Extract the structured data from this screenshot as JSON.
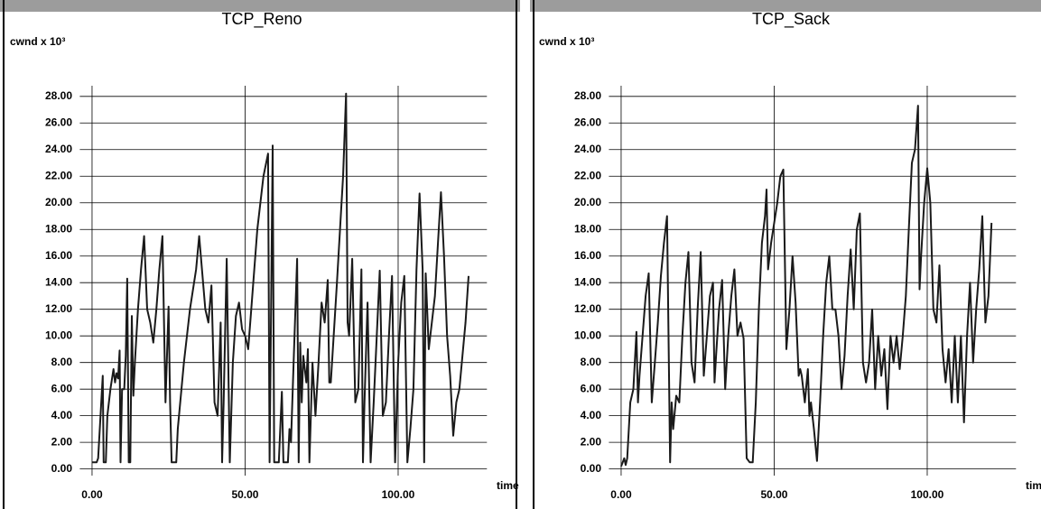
{
  "chart_data": [
    {
      "type": "line",
      "title": "TCP_Reno",
      "ylabel": "cwnd x 10³",
      "xlabel": "time",
      "grid": true,
      "xlim": [
        -4,
        129
      ],
      "ylim": [
        -0.5,
        28.8
      ],
      "xticks": [
        {
          "value": 0,
          "label": "0.00"
        },
        {
          "value": 50,
          "label": "50.00"
        },
        {
          "value": 100,
          "label": "100.00"
        }
      ],
      "yticks": [
        {
          "value": 0,
          "label": "0.00"
        },
        {
          "value": 2,
          "label": "2.00"
        },
        {
          "value": 4,
          "label": "4.00"
        },
        {
          "value": 6,
          "label": "6.00"
        },
        {
          "value": 8,
          "label": "8.00"
        },
        {
          "value": 10,
          "label": "10.00"
        },
        {
          "value": 12,
          "label": "12.00"
        },
        {
          "value": 14,
          "label": "14.00"
        },
        {
          "value": 16,
          "label": "16.00"
        },
        {
          "value": 18,
          "label": "18.00"
        },
        {
          "value": 20,
          "label": "20.00"
        },
        {
          "value": 22,
          "label": "22.00"
        },
        {
          "value": 24,
          "label": "24.00"
        },
        {
          "value": 26,
          "label": "26.00"
        },
        {
          "value": 28,
          "label": "28.00"
        }
      ],
      "x": [
        0,
        1.5,
        2,
        3.5,
        3.8,
        4.5,
        5,
        6,
        7,
        7.5,
        8,
        8.5,
        9,
        9.3,
        9.8,
        10.5,
        11,
        11.5,
        12,
        12.5,
        13,
        13.5,
        14,
        15,
        16,
        17,
        18,
        19,
        20,
        21,
        22,
        23,
        24,
        25,
        25.5,
        26,
        27.5,
        28,
        30,
        32,
        34,
        35,
        37,
        38,
        39,
        40,
        41,
        42,
        42.5,
        43,
        44,
        45,
        46,
        47,
        48,
        49,
        50,
        51,
        52,
        54,
        56,
        57.5,
        58,
        59,
        59.5,
        61,
        62,
        62.5,
        64,
        64.5,
        65,
        66,
        67,
        67.5,
        68,
        68.5,
        69,
        70,
        70.5,
        71,
        72,
        73,
        74,
        75,
        76,
        77,
        77.5,
        78,
        80,
        82,
        83,
        83.5,
        84,
        85,
        86,
        87,
        88,
        88.5,
        89,
        90,
        91,
        92,
        93,
        94,
        95,
        96,
        97,
        98,
        99,
        100,
        101,
        102,
        103,
        104,
        105,
        106,
        107,
        108,
        108.5,
        109,
        110,
        112,
        113,
        114,
        115,
        116,
        117,
        118,
        119,
        120,
        122,
        123
      ],
      "series": [
        {
          "color": "#1a1a1a",
          "values": [
            0.5,
            0.5,
            0.8,
            7,
            0.5,
            0.5,
            4,
            6,
            7.5,
            6.5,
            7.2,
            6.8,
            8.9,
            0.5,
            6,
            6,
            8.5,
            14.3,
            0.5,
            0.5,
            11.5,
            5.5,
            8,
            12,
            15,
            17.5,
            12,
            11,
            9.5,
            12,
            15,
            17.5,
            5,
            12.2,
            5,
            0.5,
            0.5,
            3,
            8,
            12,
            15,
            17.5,
            12,
            11,
            13.8,
            5,
            4,
            11,
            0.5,
            5,
            15.8,
            0.5,
            8,
            11.5,
            12.5,
            10.5,
            10,
            9,
            12,
            18,
            22,
            23.7,
            0.5,
            24.3,
            0.5,
            0.5,
            5.8,
            0.5,
            0.5,
            3,
            2,
            9,
            15.8,
            0.5,
            9.5,
            5,
            8.5,
            6.5,
            9,
            0.5,
            8,
            4,
            8,
            12.5,
            11,
            14.2,
            6.5,
            6.5,
            14,
            22,
            28.2,
            11,
            10,
            15.8,
            5,
            6,
            15,
            0.5,
            5,
            12.5,
            0.5,
            5,
            10,
            14.9,
            4,
            5,
            10,
            14.5,
            0.5,
            8,
            12.5,
            14.5,
            0.5,
            3,
            6,
            15,
            20.7,
            15,
            0.5,
            14.7,
            9,
            13,
            17,
            20.8,
            16,
            10,
            7,
            2.5,
            5,
            6,
            11,
            14.5
          ]
        }
      ]
    },
    {
      "type": "line",
      "title": "TCP_Sack",
      "ylabel": "cwnd x 10³",
      "xlabel": "time",
      "grid": true,
      "xlim": [
        -4,
        129
      ],
      "ylim": [
        -0.5,
        28.8
      ],
      "xticks": [
        {
          "value": 0,
          "label": "0.00"
        },
        {
          "value": 50,
          "label": "50.00"
        },
        {
          "value": 100,
          "label": "100.00"
        }
      ],
      "yticks": [
        {
          "value": 0,
          "label": "0.00"
        },
        {
          "value": 2,
          "label": "2.00"
        },
        {
          "value": 4,
          "label": "4.00"
        },
        {
          "value": 6,
          "label": "6.00"
        },
        {
          "value": 8,
          "label": "8.00"
        },
        {
          "value": 10,
          "label": "10.00"
        },
        {
          "value": 12,
          "label": "12.00"
        },
        {
          "value": 14,
          "label": "14.00"
        },
        {
          "value": 16,
          "label": "16.00"
        },
        {
          "value": 18,
          "label": "18.00"
        },
        {
          "value": 20,
          "label": "20.00"
        },
        {
          "value": 22,
          "label": "22.00"
        },
        {
          "value": 24,
          "label": "24.00"
        },
        {
          "value": 26,
          "label": "26.00"
        },
        {
          "value": 28,
          "label": "28.00"
        }
      ],
      "x": [
        0,
        0.5,
        1,
        1.5,
        2,
        3,
        4,
        5,
        5.5,
        6,
        7,
        8,
        9,
        10,
        11,
        12,
        13,
        14,
        15,
        16,
        16.5,
        17,
        18,
        19,
        20,
        21,
        22,
        23,
        24,
        25,
        26,
        27,
        28,
        29,
        30,
        30.5,
        31,
        32,
        33,
        34,
        35,
        36,
        37,
        38,
        39,
        40,
        41,
        42,
        43,
        44,
        45,
        46,
        47,
        47.5,
        48,
        49,
        50,
        51,
        52,
        53,
        54,
        55,
        56,
        57,
        58,
        58.5,
        59,
        60,
        61,
        61.5,
        62,
        63,
        64,
        65,
        66,
        67,
        68,
        69,
        70,
        71,
        72,
        73,
        74,
        75,
        76,
        77,
        78,
        79,
        80,
        81,
        82,
        83,
        84,
        85,
        86,
        87,
        88,
        89,
        90,
        91,
        92,
        93,
        94,
        95,
        96,
        97,
        97.5,
        98,
        99,
        100,
        101,
        102,
        103,
        104,
        105,
        106,
        107,
        108,
        109,
        110,
        111,
        112,
        113,
        114,
        115,
        116,
        117,
        118,
        119,
        120,
        121
      ],
      "series": [
        {
          "color": "#1a1a1a",
          "values": [
            0.2,
            0.5,
            0.8,
            0.3,
            0.8,
            5,
            6,
            10.3,
            5,
            7,
            10,
            13,
            14.7,
            5,
            8,
            11,
            14.5,
            17,
            19,
            0.5,
            5,
            3,
            5.5,
            5,
            10,
            14,
            16.3,
            8,
            6.5,
            12,
            16.3,
            7,
            10,
            13,
            14,
            6.5,
            8.5,
            12,
            14.2,
            6,
            10,
            13,
            15,
            10,
            11,
            9.8,
            0.8,
            0.5,
            0.5,
            5,
            12,
            17,
            19,
            21,
            15,
            17,
            18.5,
            20,
            22,
            22.5,
            9,
            12,
            16,
            12.5,
            7,
            7.5,
            7,
            5,
            7.5,
            4,
            5,
            3,
            0.6,
            5,
            10,
            14,
            16,
            12,
            12,
            10,
            6,
            8.5,
            13,
            16.5,
            12,
            18,
            19.2,
            8,
            6.5,
            8,
            12,
            6,
            10,
            7,
            9,
            4.5,
            10,
            8,
            10,
            7.5,
            10,
            13,
            18,
            23,
            24,
            27.3,
            13.5,
            16,
            20,
            22.6,
            20,
            12,
            11,
            15.3,
            9,
            6.5,
            9,
            5,
            10,
            5,
            10,
            3.5,
            10,
            14,
            8,
            12,
            15,
            19,
            11,
            13,
            18.5
          ]
        }
      ]
    }
  ]
}
